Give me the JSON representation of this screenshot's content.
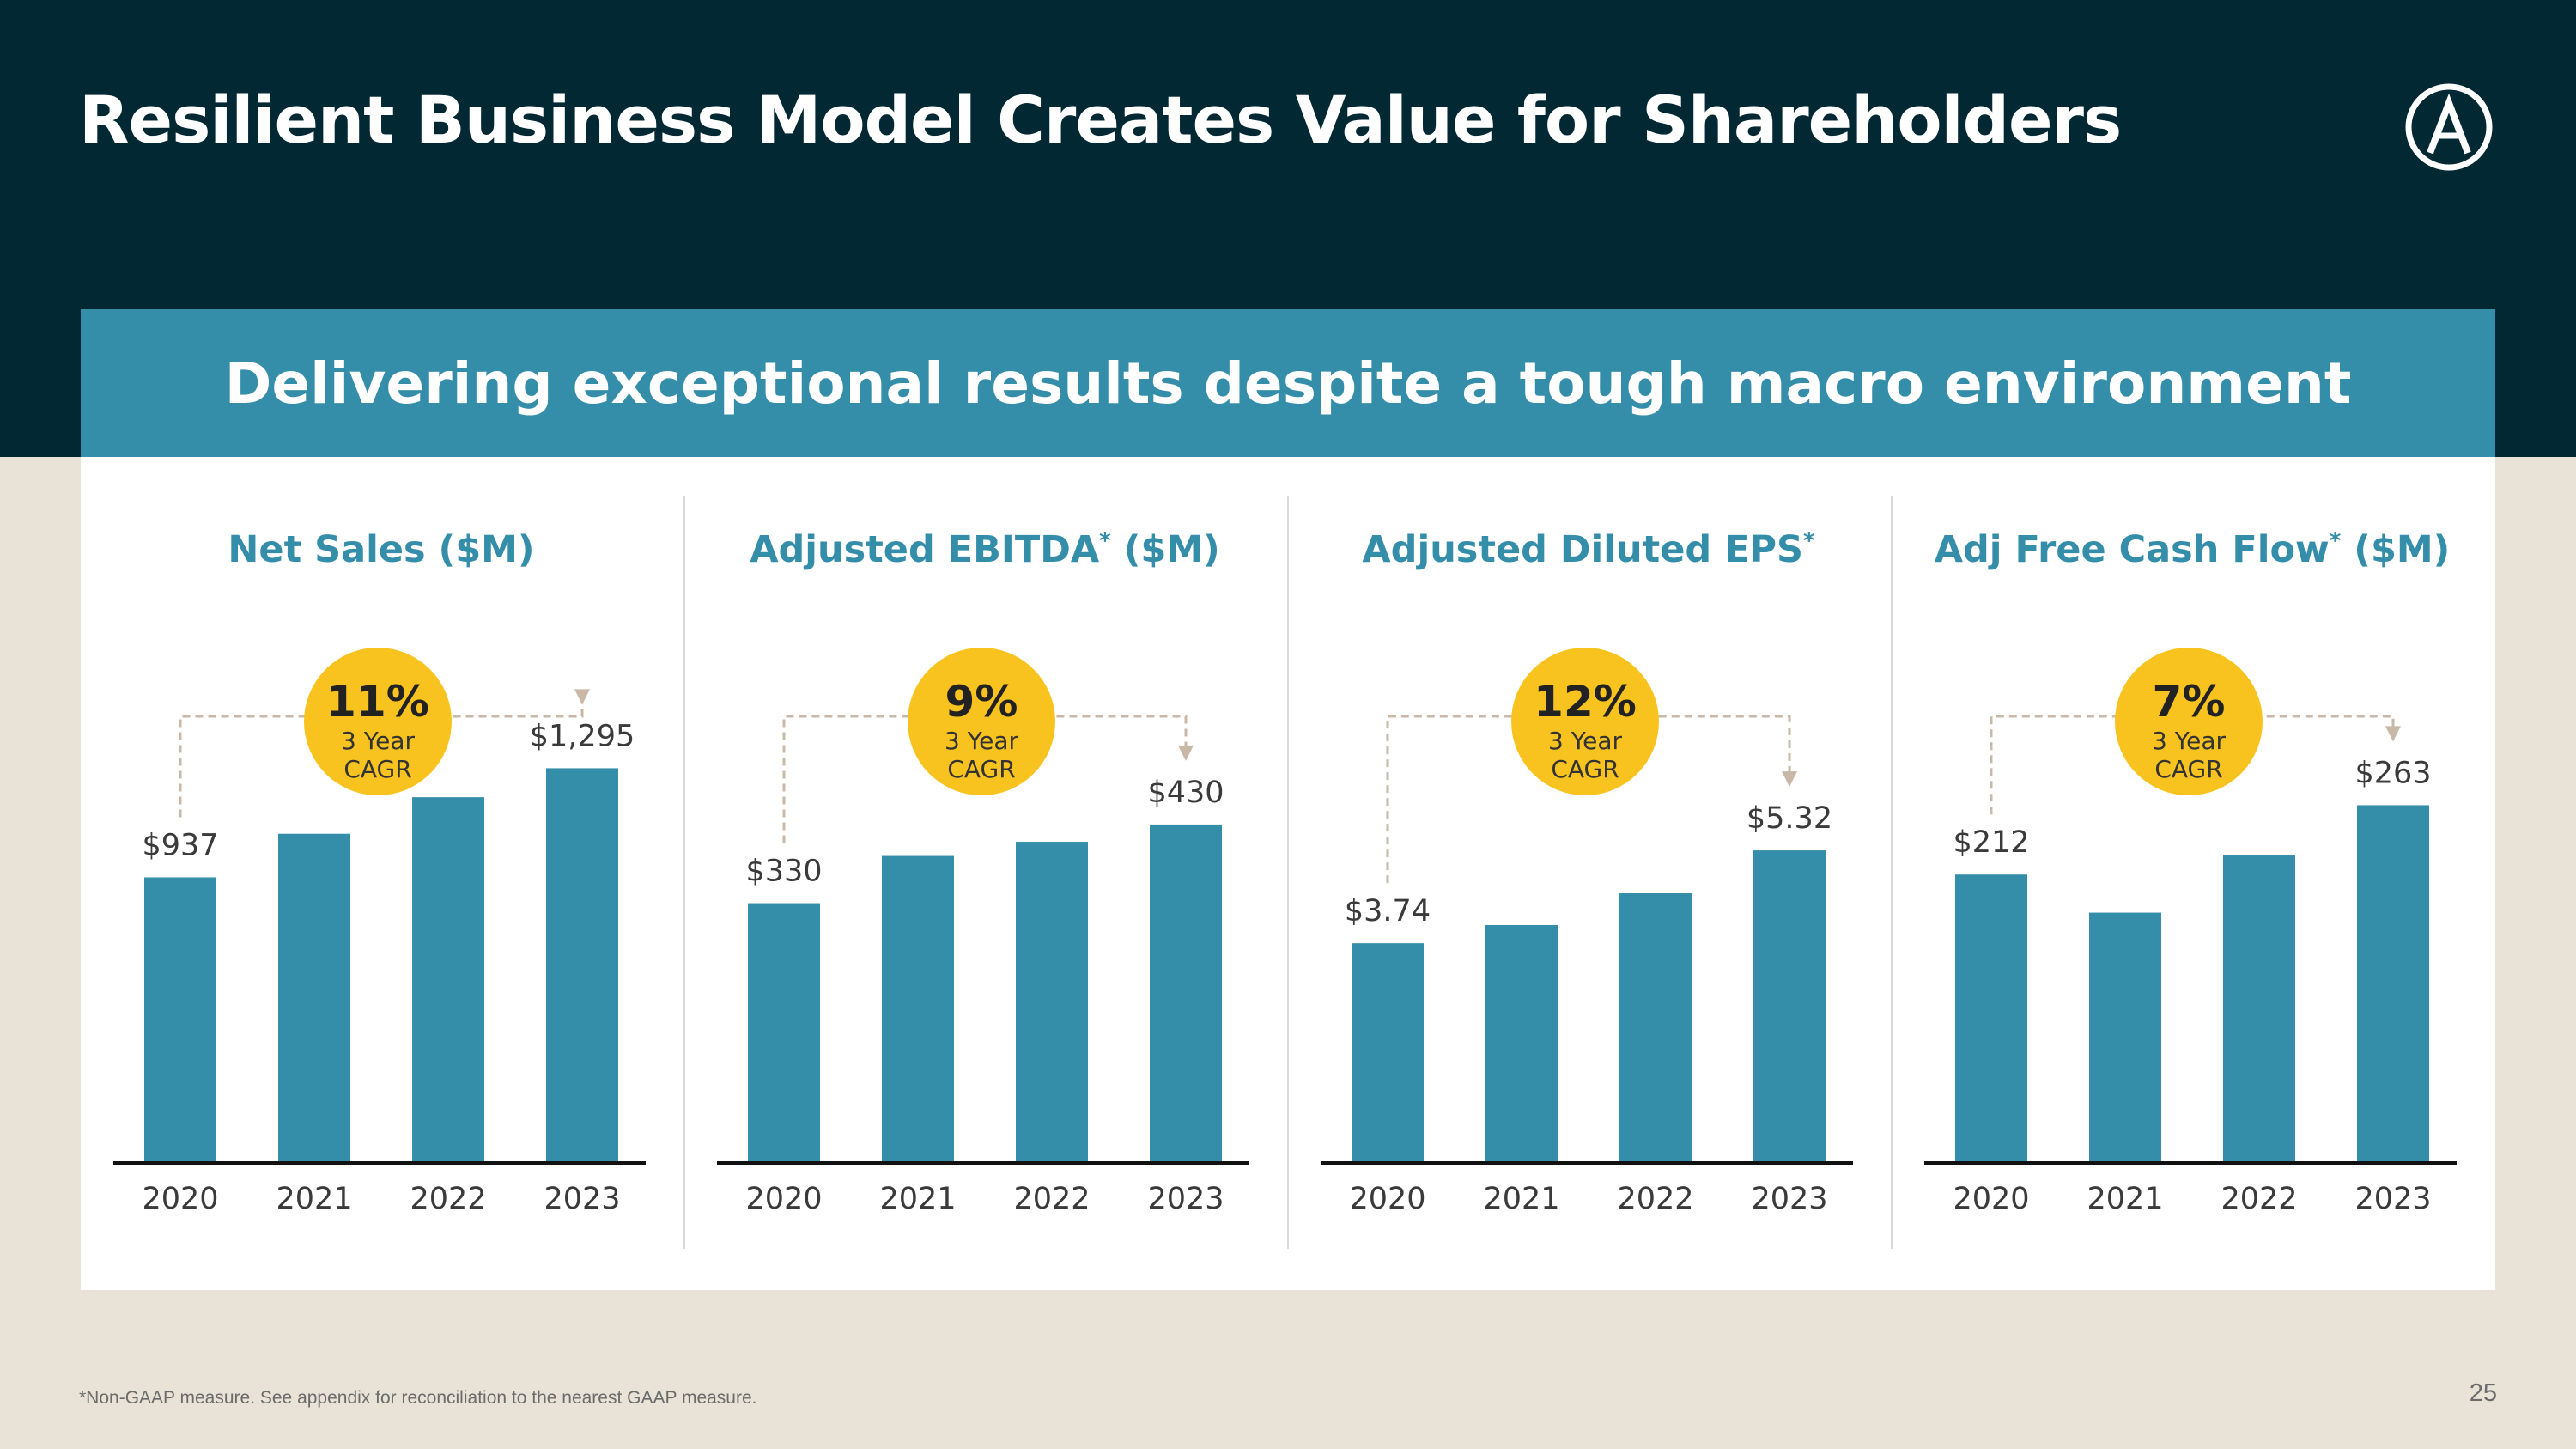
{
  "header": {
    "title": "Resilient Business Model Creates Value for Shareholders"
  },
  "banner": {
    "text": "Delivering exceptional results despite a tough macro environment"
  },
  "colors": {
    "navy": "#012833",
    "teal": "#348da9",
    "gold": "#f8c31e",
    "beige": "#e8e3d6",
    "bracket": "#c9b8a8"
  },
  "chart_data": [
    {
      "type": "bar",
      "title": "Net Sales ($M)",
      "title_main": "Net Sales ($M)",
      "title_note": "",
      "title_tail": "",
      "categories": [
        "2020",
        "2021",
        "2022",
        "2023"
      ],
      "values": [
        937,
        1080,
        1200,
        1295
      ],
      "labels": [
        "$937",
        "",
        "",
        "$1,295"
      ],
      "ylim": [
        0,
        1330
      ],
      "cagr": {
        "value": "11%",
        "line1": "3 Year",
        "line2": "CAGR"
      }
    },
    {
      "type": "bar",
      "title": "Adjusted EBITDA* ($M)",
      "title_main": "Adjusted EBITDA",
      "title_note": "*",
      "title_tail": " ($M)",
      "categories": [
        "2020",
        "2021",
        "2022",
        "2023"
      ],
      "values": [
        330,
        390,
        408,
        430
      ],
      "labels": [
        "$330",
        "",
        "",
        "$430"
      ],
      "ylim": [
        0,
        515
      ],
      "cagr": {
        "value": "9%",
        "line1": "3 Year",
        "line2": "CAGR"
      }
    },
    {
      "type": "bar",
      "title": "Adjusted Diluted EPS*",
      "title_main": "Adjusted Diluted EPS",
      "title_note": "*",
      "title_tail": "",
      "categories": [
        "2020",
        "2021",
        "2022",
        "2023"
      ],
      "values": [
        3.74,
        4.05,
        4.59,
        5.32
      ],
      "labels": [
        "$3.74",
        "",
        "",
        "$5.32"
      ],
      "ylim": [
        0,
        6.9
      ],
      "cagr": {
        "value": "12%",
        "line1": "3 Year",
        "line2": "CAGR"
      }
    },
    {
      "type": "bar",
      "title": "Adj Free Cash Flow* ($M)",
      "title_main": "Adj Free Cash Flow",
      "title_note": "*",
      "title_tail": " ($M)",
      "categories": [
        "2020",
        "2021",
        "2022",
        "2023"
      ],
      "values": [
        212,
        184,
        226,
        263
      ],
      "labels": [
        "$212",
        "",
        "",
        "$263"
      ],
      "ylim": [
        0,
        298
      ],
      "cagr": {
        "value": "7%",
        "line1": "3 Year",
        "line2": "CAGR"
      }
    }
  ],
  "footnote": "*Non-GAAP measure. See  appendix for reconciliation to the nearest GAAP measure.",
  "page_number": "25"
}
